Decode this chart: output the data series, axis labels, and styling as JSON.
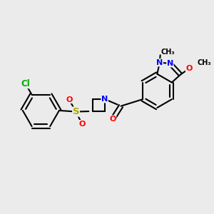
{
  "bg_color": "#ebebeb",
  "bond_color": "#000000",
  "bond_width": 1.5,
  "atom_colors": {
    "Cl": "#00aa00",
    "S": "#aaaa00",
    "O": "#ff0000",
    "N": "#0000ff",
    "C": "#000000"
  },
  "font_size": 8,
  "fig_size": [
    3.0,
    3.0
  ],
  "dpi": 100,
  "xlim": [
    0,
    10
  ],
  "ylim": [
    0,
    10
  ]
}
